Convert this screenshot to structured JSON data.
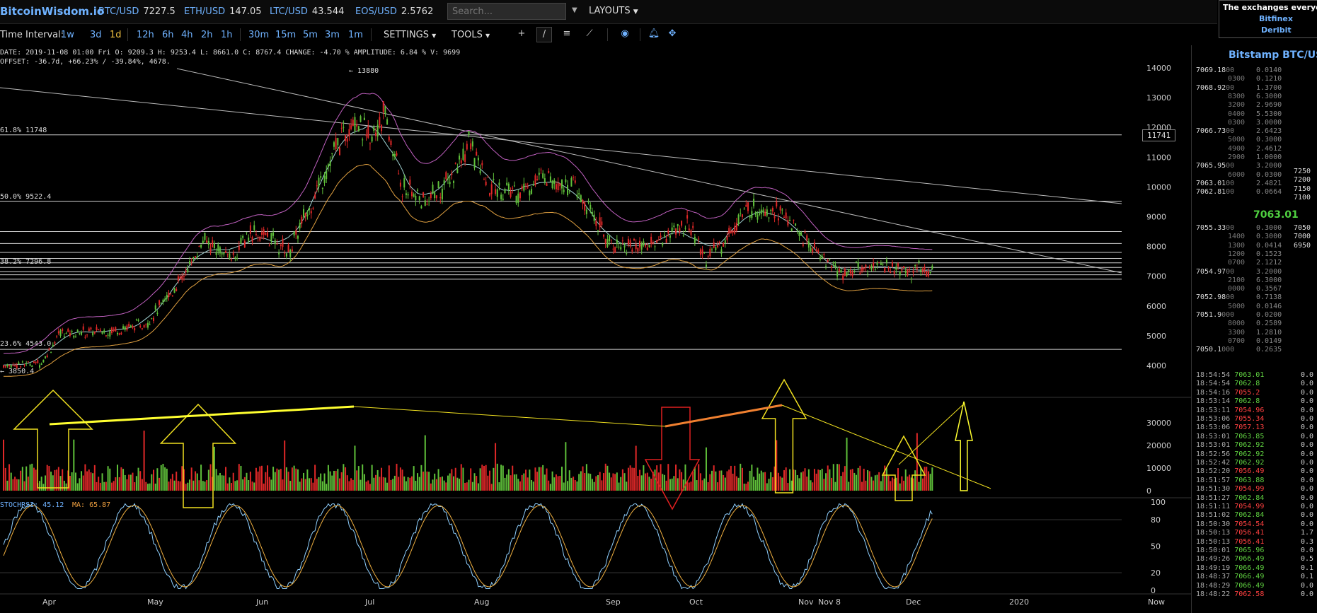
{
  "brand": "BitcoinWisdom.io",
  "tickers": [
    {
      "sym": "BTC/USD",
      "val": "7227.5"
    },
    {
      "sym": "ETH/USD",
      "val": "147.05"
    },
    {
      "sym": "LTC/USD",
      "val": "43.544"
    },
    {
      "sym": "EOS/USD",
      "val": "2.5762"
    }
  ],
  "search": {
    "placeholder": "Search..."
  },
  "layouts_label": "LAYOUTS",
  "ad": {
    "text": "The exchanges everyone",
    "links": [
      "Bitfinex",
      "Deribit"
    ]
  },
  "toolbar": {
    "time_interval_label": "Time Interval:",
    "intervals_a": [
      "1w",
      "3d",
      "1d"
    ],
    "intervals_b": [
      "12h",
      "6h",
      "4h",
      "2h",
      "1h"
    ],
    "intervals_c": [
      "30m",
      "15m",
      "5m",
      "3m",
      "1m"
    ],
    "active_interval": "1d",
    "settings_label": "SETTINGS",
    "tools_label": "TOOLS"
  },
  "info": {
    "line1": "DATE: 2019-11-08 01:00 Fri    O: 9209.3    H: 9253.4    L: 8661.0    C: 8767.4    CHANGE: -4.70 %    AMPLITUDE: 6.84 %    V: 9699",
    "line2": "OFFSET: -36.7d, +66.23% / -39.84%, 4678."
  },
  "chart_labels": {
    "high_marker": "← 13880",
    "low_marker": "← 3850.4",
    "fib_618": "61.8% 11748",
    "fib_50": "50.0% 9522.4",
    "fib_382": "38.2% 7296.8",
    "fib_236": "23.6% 4543.0",
    "price_tag": "11741",
    "stochrsi": "STOCHRSI: 45.12",
    "ma": "MA: 65.87"
  },
  "price_axis": [
    "14000",
    "13000",
    "12000",
    "11000",
    "10000",
    "9000",
    "8000",
    "7000",
    "6000",
    "5000",
    "4000"
  ],
  "volume_axis": [
    "30000",
    "20000",
    "10000",
    "0"
  ],
  "stoch_axis": [
    "100",
    "80",
    "50",
    "20",
    "0"
  ],
  "time_axis": [
    "Apr",
    "May",
    "Jun",
    "Jul",
    "Aug",
    "Sep",
    "Oct",
    "Nov",
    "Nov 8",
    "Dec",
    "2020",
    "Now"
  ],
  "colors": {
    "up": "#5fc03a",
    "down": "#e02828",
    "accent": "#6fb2ff",
    "active": "#f0c040"
  },
  "orderbook": {
    "title": "Bitstamp BTC/USD",
    "asks": [
      [
        "7069.18",
        "00",
        "0.0140"
      ],
      [
        "",
        "0300",
        "0.1210"
      ],
      [
        "7068.92",
        "00",
        "1.3700"
      ],
      [
        "",
        "8300",
        "6.3000"
      ],
      [
        "",
        "3200",
        "2.9690"
      ],
      [
        "",
        "0400",
        "5.5300"
      ],
      [
        "",
        "0300",
        "3.0000"
      ],
      [
        "7066.73",
        "00",
        "2.6423"
      ],
      [
        "",
        "5000",
        "0.3000"
      ],
      [
        "",
        "4900",
        "2.4612"
      ],
      [
        "",
        "2900",
        "1.0000"
      ],
      [
        "7065.95",
        "00",
        "3.2000"
      ],
      [
        "",
        "6000",
        "0.0300"
      ],
      [
        "7063.01",
        "00",
        "2.4821"
      ],
      [
        "7062.81",
        "00",
        "0.0664"
      ]
    ],
    "ask_scale": [
      "7250",
      "7200",
      "7150",
      "7100"
    ],
    "last": "7063.01",
    "bids": [
      [
        "7055.33",
        "00",
        "0.3000"
      ],
      [
        "",
        "1400",
        "0.3000"
      ],
      [
        "",
        "1300",
        "0.0414"
      ],
      [
        "",
        "1200",
        "0.1523"
      ],
      [
        "",
        "0700",
        "2.1212"
      ],
      [
        "7054.97",
        "00",
        "3.2000"
      ],
      [
        "",
        "2100",
        "6.3000"
      ],
      [
        "",
        "0000",
        "0.3567"
      ],
      [
        "7052.98",
        "00",
        "0.7138"
      ],
      [
        "",
        "5000",
        "0.0146"
      ],
      [
        "7051.9",
        "000",
        "0.0200"
      ],
      [
        "",
        "8000",
        "0.2589"
      ],
      [
        "",
        "3300",
        "1.2810"
      ],
      [
        "",
        "0700",
        "0.0149"
      ],
      [
        "7050.1",
        "000",
        "0.2635"
      ]
    ],
    "bid_scale": [
      "7050",
      "7000",
      "6950"
    ]
  },
  "trades": [
    [
      "18:54:54",
      "7063.01",
      "up",
      "0.0"
    ],
    [
      "18:54:54",
      "7062.8",
      "up",
      "0.0"
    ],
    [
      "18:54:16",
      "7055.2",
      "down",
      "0.0"
    ],
    [
      "18:53:14",
      "7062.8",
      "up",
      "0.0"
    ],
    [
      "18:53:11",
      "7054.96",
      "down",
      "0.0"
    ],
    [
      "18:53:06",
      "7055.34",
      "down",
      "0.0"
    ],
    [
      "18:53:06",
      "7057.13",
      "down",
      "0.0"
    ],
    [
      "18:53:01",
      "7063.85",
      "up",
      "0.0"
    ],
    [
      "18:53:01",
      "7062.92",
      "up",
      "0.0"
    ],
    [
      "18:52:56",
      "7062.92",
      "up",
      "0.0"
    ],
    [
      "18:52:42",
      "7062.92",
      "up",
      "0.0"
    ],
    [
      "18:52:20",
      "7056.49",
      "down",
      "0.0"
    ],
    [
      "18:51:57",
      "7063.88",
      "up",
      "0.0"
    ],
    [
      "18:51:30",
      "7054.99",
      "down",
      "0.0"
    ],
    [
      "18:51:27",
      "7062.84",
      "up",
      "0.0"
    ],
    [
      "18:51:11",
      "7054.99",
      "down",
      "0.0"
    ],
    [
      "18:51:02",
      "7062.84",
      "up",
      "0.0"
    ],
    [
      "18:50:30",
      "7054.54",
      "down",
      "0.0"
    ],
    [
      "18:50:13",
      "7056.41",
      "down",
      "1.7"
    ],
    [
      "18:50:13",
      "7056.41",
      "down",
      "0.3"
    ],
    [
      "18:50:01",
      "7065.96",
      "up",
      "0.0"
    ],
    [
      "18:49:26",
      "7066.49",
      "up",
      "0.5"
    ],
    [
      "18:49:19",
      "7066.49",
      "up",
      "0.1"
    ],
    [
      "18:48:37",
      "7066.49",
      "up",
      "0.1"
    ],
    [
      "18:48:29",
      "7066.49",
      "up",
      "0.0"
    ],
    [
      "18:48:22",
      "7062.58",
      "down",
      "0.0"
    ]
  ]
}
